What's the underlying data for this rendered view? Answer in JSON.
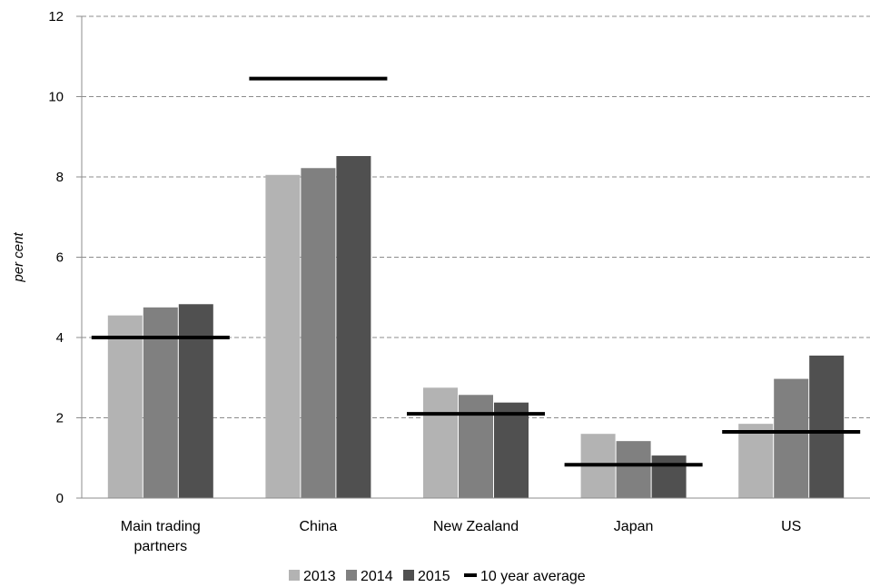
{
  "chart_data": {
    "type": "bar",
    "title": "",
    "xlabel": "",
    "ylabel": "per cent",
    "ylim": [
      0,
      12
    ],
    "yticks": [
      0,
      2,
      4,
      6,
      8,
      10,
      12
    ],
    "grid": true,
    "legend_position": "bottom",
    "categories": [
      [
        "Main trading",
        "partners"
      ],
      [
        "China"
      ],
      [
        "New Zealand"
      ],
      [
        "Japan"
      ],
      [
        "US"
      ]
    ],
    "series": [
      {
        "name": "2013",
        "color": "#b3b3b3",
        "values": [
          4.55,
          8.05,
          2.75,
          1.6,
          1.85
        ]
      },
      {
        "name": "2014",
        "color": "#808080",
        "values": [
          4.75,
          8.22,
          2.57,
          1.42,
          2.97
        ]
      },
      {
        "name": "2015",
        "color": "#505050",
        "values": [
          4.83,
          8.52,
          2.38,
          1.06,
          3.55
        ]
      }
    ],
    "reference": {
      "name": "10 year average",
      "color": "#000000",
      "values": [
        4.0,
        10.45,
        2.1,
        0.83,
        1.65
      ]
    }
  }
}
